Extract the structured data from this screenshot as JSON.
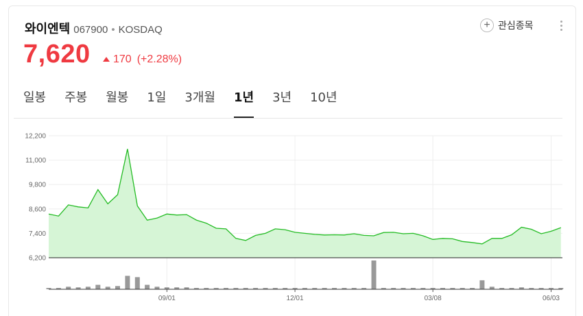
{
  "stock": {
    "name": "와이엔텍",
    "code": "067900",
    "market": "KOSDAQ",
    "price": "7,620",
    "change": "170",
    "change_pct": "(+2.28%)",
    "color_up": "#ef3a41"
  },
  "watch": {
    "label": "관심종목",
    "icon": "plus-circle-icon"
  },
  "tabs": [
    {
      "label": "일봉",
      "active": false
    },
    {
      "label": "주봉",
      "active": false
    },
    {
      "label": "월봉",
      "active": false
    },
    {
      "label": "1일",
      "active": false
    },
    {
      "label": "3개월",
      "active": false
    },
    {
      "label": "1년",
      "active": true
    },
    {
      "label": "3년",
      "active": false
    },
    {
      "label": "10년",
      "active": false
    }
  ],
  "chart_data": {
    "type": "area",
    "line_color": "#22bb22",
    "fill_color": "#d6f5d6",
    "ylim": [
      6200,
      12200
    ],
    "y_ticks": [
      "12,200",
      "11,000",
      "9,800",
      "8,600",
      "7,400",
      "6,200"
    ],
    "y_tick_values": [
      12200,
      11000,
      9800,
      8600,
      7400,
      6200
    ],
    "x_ticks": [
      "09/01",
      "12/01",
      "03/08",
      "06/03"
    ],
    "x_tick_index": [
      12,
      25,
      39,
      51
    ],
    "x_count": 53,
    "x_start_offset": 0.15,
    "values": [
      8350,
      8250,
      8800,
      8700,
      8650,
      9550,
      8850,
      9300,
      11550,
      8750,
      8050,
      8150,
      8350,
      8300,
      8320,
      8050,
      7900,
      7650,
      7620,
      7150,
      7050,
      7300,
      7400,
      7620,
      7580,
      7450,
      7400,
      7350,
      7320,
      7330,
      7320,
      7380,
      7300,
      7280,
      7440,
      7450,
      7380,
      7400,
      7280,
      7100,
      7150,
      7130,
      7000,
      6950,
      6880,
      7150,
      7150,
      7330,
      7700,
      7600,
      7380,
      7500,
      7680
    ],
    "volume": [
      2,
      2,
      4,
      3,
      4,
      7,
      4,
      5,
      21,
      19,
      7,
      4,
      3,
      3,
      3,
      2,
      2,
      2,
      2,
      2,
      2,
      2,
      2,
      2,
      2,
      2,
      2,
      2,
      2,
      2,
      2,
      2,
      2,
      45,
      2,
      2,
      2,
      2,
      2,
      2,
      2,
      2,
      2,
      2,
      14,
      4,
      2,
      2,
      3,
      2,
      2,
      2,
      2
    ]
  }
}
